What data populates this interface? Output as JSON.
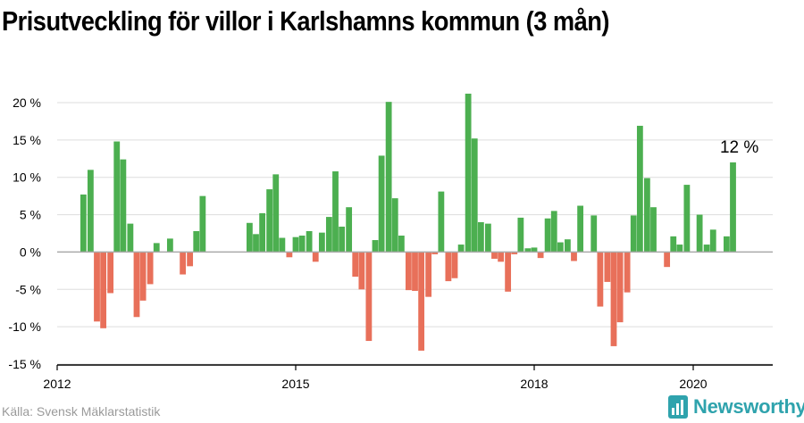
{
  "page": {
    "title": "Prisutveckling för villor i Karlshamns kommun (3 mån)",
    "source": "Källa: Svensk Mäklarstatistik",
    "brand": "Newsworthy"
  },
  "colors": {
    "positive": "#4caf50",
    "negative": "#e8705a",
    "grid": "#dddddd",
    "zero": "#aaaaaa",
    "axis": "#000000"
  },
  "icons": {
    "brand": "newsworthy-logo-icon"
  },
  "chart_data": {
    "type": "bar",
    "title": "Prisutveckling för villor i Karlshamns kommun (3 mån)",
    "xlabel": "",
    "ylabel": "",
    "x_range": [
      2012.0,
      2021.0
    ],
    "x_ticks": [
      {
        "value": 2012,
        "label": "2012"
      },
      {
        "value": 2015,
        "label": "2015"
      },
      {
        "value": 2018,
        "label": "2018"
      },
      {
        "value": 2020,
        "label": "2020"
      }
    ],
    "ylim": [
      -15,
      20
    ],
    "y_ticks": [
      {
        "value": 20,
        "label": "20 %"
      },
      {
        "value": 15,
        "label": "15 %"
      },
      {
        "value": 10,
        "label": "10 %"
      },
      {
        "value": 5,
        "label": "5 %"
      },
      {
        "value": 0,
        "label": "0 %"
      },
      {
        "value": -5,
        "label": "-5 %"
      },
      {
        "value": -10,
        "label": "-10 %"
      },
      {
        "value": -15,
        "label": "-15 %"
      }
    ],
    "grid": true,
    "annotation": {
      "x": 2020.58,
      "y": 12,
      "label": "12 %"
    },
    "series": [
      {
        "points": [
          {
            "x": 2012.33,
            "y": 7.7
          },
          {
            "x": 2012.42,
            "y": 11.0
          },
          {
            "x": 2012.5,
            "y": -9.3
          },
          {
            "x": 2012.58,
            "y": -10.2
          },
          {
            "x": 2012.67,
            "y": -5.5
          },
          {
            "x": 2012.75,
            "y": 14.8
          },
          {
            "x": 2012.83,
            "y": 12.4
          },
          {
            "x": 2012.92,
            "y": 3.8
          },
          {
            "x": 2013.0,
            "y": -8.7
          },
          {
            "x": 2013.08,
            "y": -6.5
          },
          {
            "x": 2013.17,
            "y": -4.3
          },
          {
            "x": 2013.25,
            "y": 1.2
          },
          {
            "x": 2013.42,
            "y": 1.8
          },
          {
            "x": 2013.58,
            "y": -3.0
          },
          {
            "x": 2013.67,
            "y": -1.9
          },
          {
            "x": 2013.75,
            "y": 2.8
          },
          {
            "x": 2013.83,
            "y": 7.5
          },
          {
            "x": 2014.42,
            "y": 3.9
          },
          {
            "x": 2014.5,
            "y": 2.4
          },
          {
            "x": 2014.58,
            "y": 5.2
          },
          {
            "x": 2014.67,
            "y": 8.4
          },
          {
            "x": 2014.75,
            "y": 10.4
          },
          {
            "x": 2014.83,
            "y": 1.9
          },
          {
            "x": 2014.92,
            "y": -0.7
          },
          {
            "x": 2015.0,
            "y": 2.0
          },
          {
            "x": 2015.08,
            "y": 2.2
          },
          {
            "x": 2015.17,
            "y": 2.8
          },
          {
            "x": 2015.25,
            "y": -1.3
          },
          {
            "x": 2015.33,
            "y": 2.6
          },
          {
            "x": 2015.42,
            "y": 4.7
          },
          {
            "x": 2015.5,
            "y": 10.8
          },
          {
            "x": 2015.58,
            "y": 3.4
          },
          {
            "x": 2015.67,
            "y": 6.0
          },
          {
            "x": 2015.75,
            "y": -3.3
          },
          {
            "x": 2015.83,
            "y": -5.0
          },
          {
            "x": 2015.92,
            "y": -11.9
          },
          {
            "x": 2016.0,
            "y": 1.6
          },
          {
            "x": 2016.08,
            "y": 12.9
          },
          {
            "x": 2016.17,
            "y": 20.1
          },
          {
            "x": 2016.25,
            "y": 7.2
          },
          {
            "x": 2016.33,
            "y": 2.2
          },
          {
            "x": 2016.42,
            "y": -5.1
          },
          {
            "x": 2016.5,
            "y": -5.2
          },
          {
            "x": 2016.58,
            "y": -13.2
          },
          {
            "x": 2016.67,
            "y": -6.0
          },
          {
            "x": 2016.75,
            "y": -0.3
          },
          {
            "x": 2016.83,
            "y": 8.1
          },
          {
            "x": 2016.92,
            "y": -3.9
          },
          {
            "x": 2017.0,
            "y": -3.5
          },
          {
            "x": 2017.08,
            "y": 1.0
          },
          {
            "x": 2017.17,
            "y": 21.2
          },
          {
            "x": 2017.25,
            "y": 15.2
          },
          {
            "x": 2017.33,
            "y": 4.0
          },
          {
            "x": 2017.42,
            "y": 3.8
          },
          {
            "x": 2017.5,
            "y": -0.9
          },
          {
            "x": 2017.58,
            "y": -1.3
          },
          {
            "x": 2017.67,
            "y": -5.3
          },
          {
            "x": 2017.75,
            "y": -0.3
          },
          {
            "x": 2017.83,
            "y": 4.6
          },
          {
            "x": 2017.92,
            "y": 0.5
          },
          {
            "x": 2018.0,
            "y": 0.6
          },
          {
            "x": 2018.08,
            "y": -0.8
          },
          {
            "x": 2018.17,
            "y": 4.5
          },
          {
            "x": 2018.25,
            "y": 5.5
          },
          {
            "x": 2018.33,
            "y": 1.3
          },
          {
            "x": 2018.42,
            "y": 1.7
          },
          {
            "x": 2018.5,
            "y": -1.2
          },
          {
            "x": 2018.58,
            "y": 6.2
          },
          {
            "x": 2018.75,
            "y": 4.9
          },
          {
            "x": 2018.83,
            "y": -7.3
          },
          {
            "x": 2018.92,
            "y": -4.0
          },
          {
            "x": 2019.0,
            "y": -12.6
          },
          {
            "x": 2019.08,
            "y": -9.4
          },
          {
            "x": 2019.17,
            "y": -5.4
          },
          {
            "x": 2019.25,
            "y": 4.9
          },
          {
            "x": 2019.33,
            "y": 16.9
          },
          {
            "x": 2019.42,
            "y": 9.9
          },
          {
            "x": 2019.5,
            "y": 6.0
          },
          {
            "x": 2019.67,
            "y": -2.0
          },
          {
            "x": 2019.75,
            "y": 2.1
          },
          {
            "x": 2019.83,
            "y": 1.0
          },
          {
            "x": 2019.92,
            "y": 9.0
          },
          {
            "x": 2020.08,
            "y": 5.0
          },
          {
            "x": 2020.17,
            "y": 1.0
          },
          {
            "x": 2020.25,
            "y": 3.0
          },
          {
            "x": 2020.42,
            "y": 2.1
          },
          {
            "x": 2020.5,
            "y": 12.0
          }
        ]
      }
    ]
  }
}
